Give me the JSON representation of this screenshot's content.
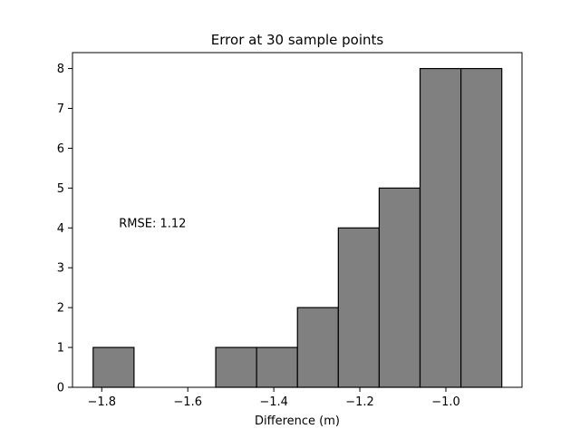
{
  "chart_data": {
    "type": "bar",
    "title": "Error at 30 sample points",
    "xlabel": "Difference (m)",
    "ylabel": "",
    "bins": [
      {
        "x0": -1.82,
        "x1": -1.725,
        "count": 1
      },
      {
        "x0": -1.725,
        "x1": -1.63,
        "count": 0
      },
      {
        "x0": -1.63,
        "x1": -1.535,
        "count": 0
      },
      {
        "x0": -1.535,
        "x1": -1.44,
        "count": 1
      },
      {
        "x0": -1.44,
        "x1": -1.345,
        "count": 1
      },
      {
        "x0": -1.345,
        "x1": -1.25,
        "count": 2
      },
      {
        "x0": -1.25,
        "x1": -1.155,
        "count": 4
      },
      {
        "x0": -1.155,
        "x1": -1.06,
        "count": 5
      },
      {
        "x0": -1.06,
        "x1": -0.965,
        "count": 8
      },
      {
        "x0": -0.965,
        "x1": -0.87,
        "count": 8
      }
    ],
    "xlim": [
      -1.868,
      -0.823
    ],
    "ylim": [
      0,
      8.4
    ],
    "xticks": [
      -1.8,
      -1.6,
      -1.4,
      -1.2,
      -1.0
    ],
    "xtick_labels": [
      "−1.8",
      "−1.6",
      "−1.4",
      "−1.2",
      "−1.0"
    ],
    "yticks": [
      0,
      1,
      2,
      3,
      4,
      5,
      6,
      7,
      8
    ],
    "ytick_labels": [
      "0",
      "1",
      "2",
      "3",
      "4",
      "5",
      "6",
      "7",
      "8"
    ],
    "annotation": {
      "text": "RMSE: 1.12",
      "x": -1.76,
      "y": 4.0
    },
    "bar_color": "#808080",
    "edge_color": "#000000",
    "grid": false,
    "legend": "none"
  }
}
